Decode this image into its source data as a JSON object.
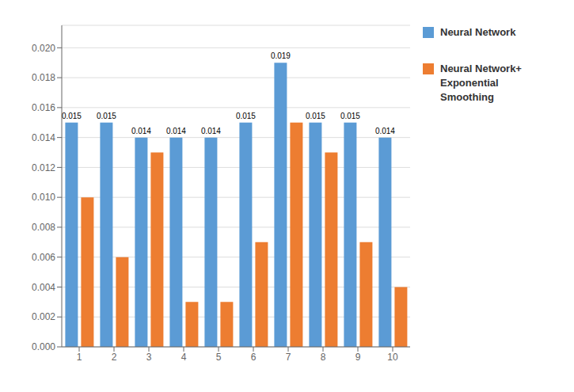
{
  "chart_data": {
    "type": "bar",
    "categories": [
      "1",
      "2",
      "3",
      "4",
      "5",
      "6",
      "7",
      "8",
      "9",
      "10"
    ],
    "series": [
      {
        "name": "Neural Network",
        "color": "#5B9BD5",
        "values": [
          0.015,
          0.015,
          0.014,
          0.014,
          0.014,
          0.015,
          0.019,
          0.015,
          0.015,
          0.014
        ],
        "data_labels": true
      },
      {
        "name": "Neural Network+\nExponential\nSmoothing",
        "color": "#ED7D31",
        "values": [
          0.01,
          0.006,
          0.013,
          0.003,
          0.003,
          0.007,
          0.015,
          0.013,
          0.007,
          0.004
        ]
      }
    ],
    "ylim": [
      0,
      0.0215
    ],
    "yticks": [
      {
        "value": 0,
        "label": "0.000"
      },
      0.002,
      0.004,
      0.006,
      0.008,
      {
        "value": 0.01,
        "label": "0.010"
      },
      0.012,
      0.014,
      0.016,
      0.018,
      {
        "value": 0.02,
        "label": "0.020"
      }
    ],
    "grid": true,
    "legend": "right"
  }
}
